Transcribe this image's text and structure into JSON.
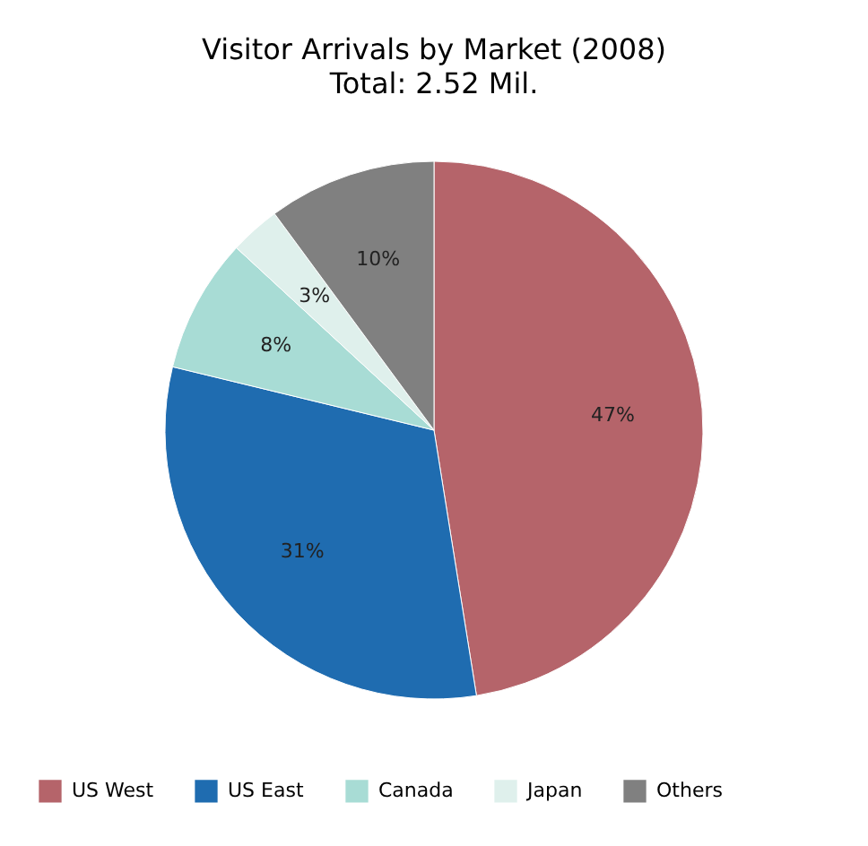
{
  "chart_data": {
    "type": "pie",
    "title": "Visitor Arrivals by Market (2008)",
    "subtitle": "Total: 2.52 Mil.",
    "categories": [
      "US West",
      "US East",
      "Canada",
      "Japan",
      "Others"
    ],
    "values": [
      47,
      31,
      8,
      3,
      10
    ],
    "colors": [
      "#b5646a",
      "#1f6cb0",
      "#a8dcd5",
      "#dff0ec",
      "#808080"
    ],
    "value_labels": [
      "47%",
      "31%",
      "8%",
      "3%",
      "10%"
    ],
    "legend": "bottom"
  }
}
